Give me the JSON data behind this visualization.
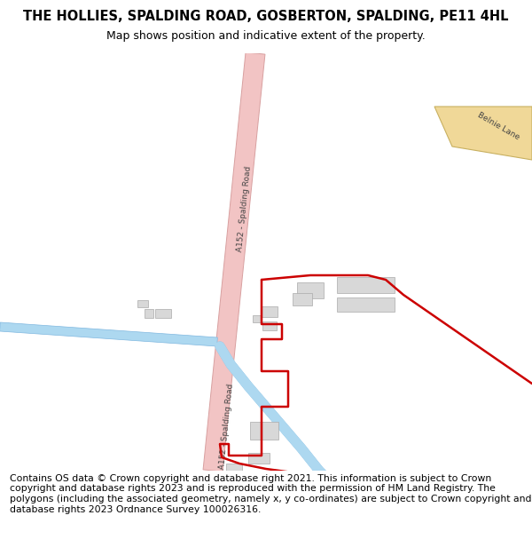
{
  "title": "THE HOLLIES, SPALDING ROAD, GOSBERTON, SPALDING, PE11 4HL",
  "subtitle": "Map shows position and indicative extent of the property.",
  "copyright": "Contains OS data © Crown copyright and database right 2021. This information is subject to Crown copyright and database rights 2023 and is reproduced with the permission of HM Land Registry. The polygons (including the associated geometry, namely x, y co-ordinates) are subject to Crown copyright and database rights 2023 Ordnance Survey 100026316.",
  "map_bg": "#ffffff",
  "road_color": "#f2c4c4",
  "road_edge": "#d8a0a0",
  "belnie_color": "#f0d898",
  "belnie_edge": "#c8b060",
  "water_color": "#add8f0",
  "water_edge": "#80b8e0",
  "building_color": "#d8d8d8",
  "building_edge": "#aaaaaa",
  "red_color": "#cc0000",
  "label_color": "#444444",
  "title_size": 10.5,
  "sub_size": 9,
  "copy_size": 7.8,
  "road_label_size": 6.5
}
